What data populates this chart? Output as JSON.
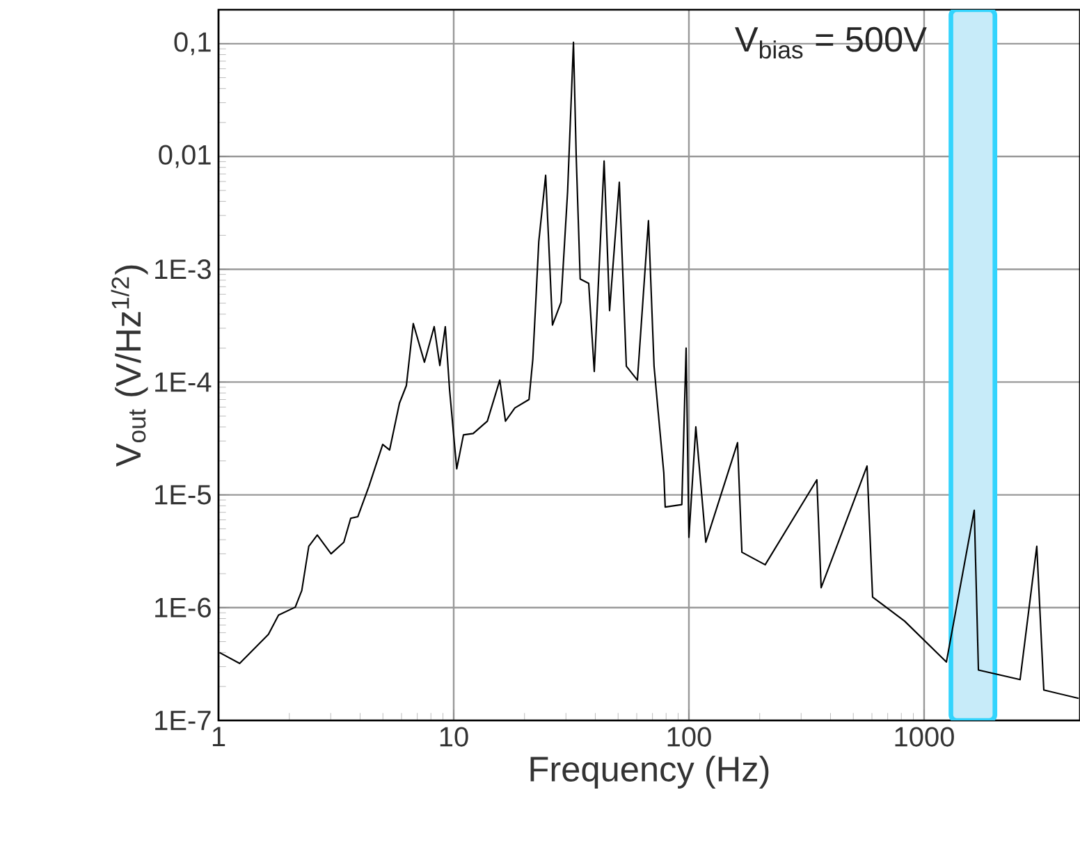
{
  "chart_data": {
    "type": "line",
    "xlabel": "Frequency  (Hz)",
    "ylabel": "V$_{out}$  (V/Hz$^{1/2}$)",
    "log": "xy",
    "grid": true,
    "marker": "none",
    "line_style": "solid",
    "xlim": [
      1,
      4600
    ],
    "ylim": [
      1e-07,
      0.2
    ],
    "xticks": [
      1,
      10,
      100,
      1000
    ],
    "yticks": [
      {
        "value": 1e-07,
        "label": "1E-7"
      },
      {
        "value": 1e-06,
        "label": "1E-6"
      },
      {
        "value": 1e-05,
        "label": "1E-5"
      },
      {
        "value": 0.0001,
        "label": "1E-4"
      },
      {
        "value": 0.001,
        "label": "1E-3"
      },
      {
        "value": 0.01,
        "label": "0,01"
      },
      {
        "value": 0.1,
        "label": "0,1"
      }
    ],
    "annotations": [
      "V$_{bias}$ = 500V"
    ],
    "bands": [
      {
        "axis": "x",
        "from": 1300,
        "to": 2000,
        "color": "#c7ebf9"
      }
    ],
    "x": [
      1.01,
      1.23,
      1.63,
      1.8,
      2.12,
      2.26,
      2.42,
      2.63,
      3.01,
      3.41,
      3.65,
      3.91,
      4.36,
      4.99,
      5.34,
      5.88,
      6.29,
      6.73,
      7.51,
      8.26,
      8.73,
      9.21,
      9.6,
      10.3,
      11.0,
      12.1,
      13.9,
      15.7,
      16.6,
      18.2,
      20.9,
      21.7,
      22.4,
      23.0,
      24.6,
      26.3,
      28.6,
      30.5,
      32.3,
      33.2,
      34.5,
      37.5,
      39.6,
      43.6,
      46.0,
      50.6,
      54.2,
      60.4,
      67.3,
      71.1,
      74.1,
      78.2,
      79.3,
      93.3,
      97.3,
      100,
      107,
      118,
      161,
      168,
      211,
      350,
      365,
      572,
      604,
      826,
      1244,
      1634,
      1702,
      2559,
      3013,
      3228,
      4540
    ],
    "series": [
      {
        "color": "#000000",
        "values": [
          4e-07,
          3.2e-07,
          5.8e-07,
          8.6e-07,
          1.01e-06,
          1.42e-06,
          3.5e-06,
          4.4e-06,
          3e-06,
          3.8e-06,
          6.2e-06,
          6.4e-06,
          1.19e-05,
          2.8e-05,
          2.5e-05,
          6.5e-05,
          9.3e-05,
          0.00033,
          0.00015,
          0.00031,
          0.00014,
          0.00031,
          8.6e-05,
          1.7e-05,
          3.4e-05,
          3.5e-05,
          4.5e-05,
          0.000104,
          4.5e-05,
          5.9e-05,
          7e-05,
          0.00016,
          0.00058,
          0.00176,
          0.0068,
          0.00032,
          0.00051,
          0.0049,
          0.103,
          0.0096,
          0.00082,
          0.00075,
          0.000124,
          0.0091,
          0.00043,
          0.0059,
          0.000138,
          0.000104,
          0.0027,
          0.000138,
          5.3e-05,
          1.57e-05,
          7.8e-06,
          8.2e-06,
          0.0002,
          4.2e-06,
          4e-05,
          3.8e-06,
          2.9e-05,
          3.1e-06,
          2.4e-06,
          1.36e-05,
          1.5e-06,
          1.8e-05,
          1.24e-06,
          7.6e-07,
          3.3e-07,
          7.3e-06,
          2.8e-07,
          2.3e-07,
          3.5e-06,
          1.86e-07,
          1.57e-07
        ]
      }
    ]
  }
}
